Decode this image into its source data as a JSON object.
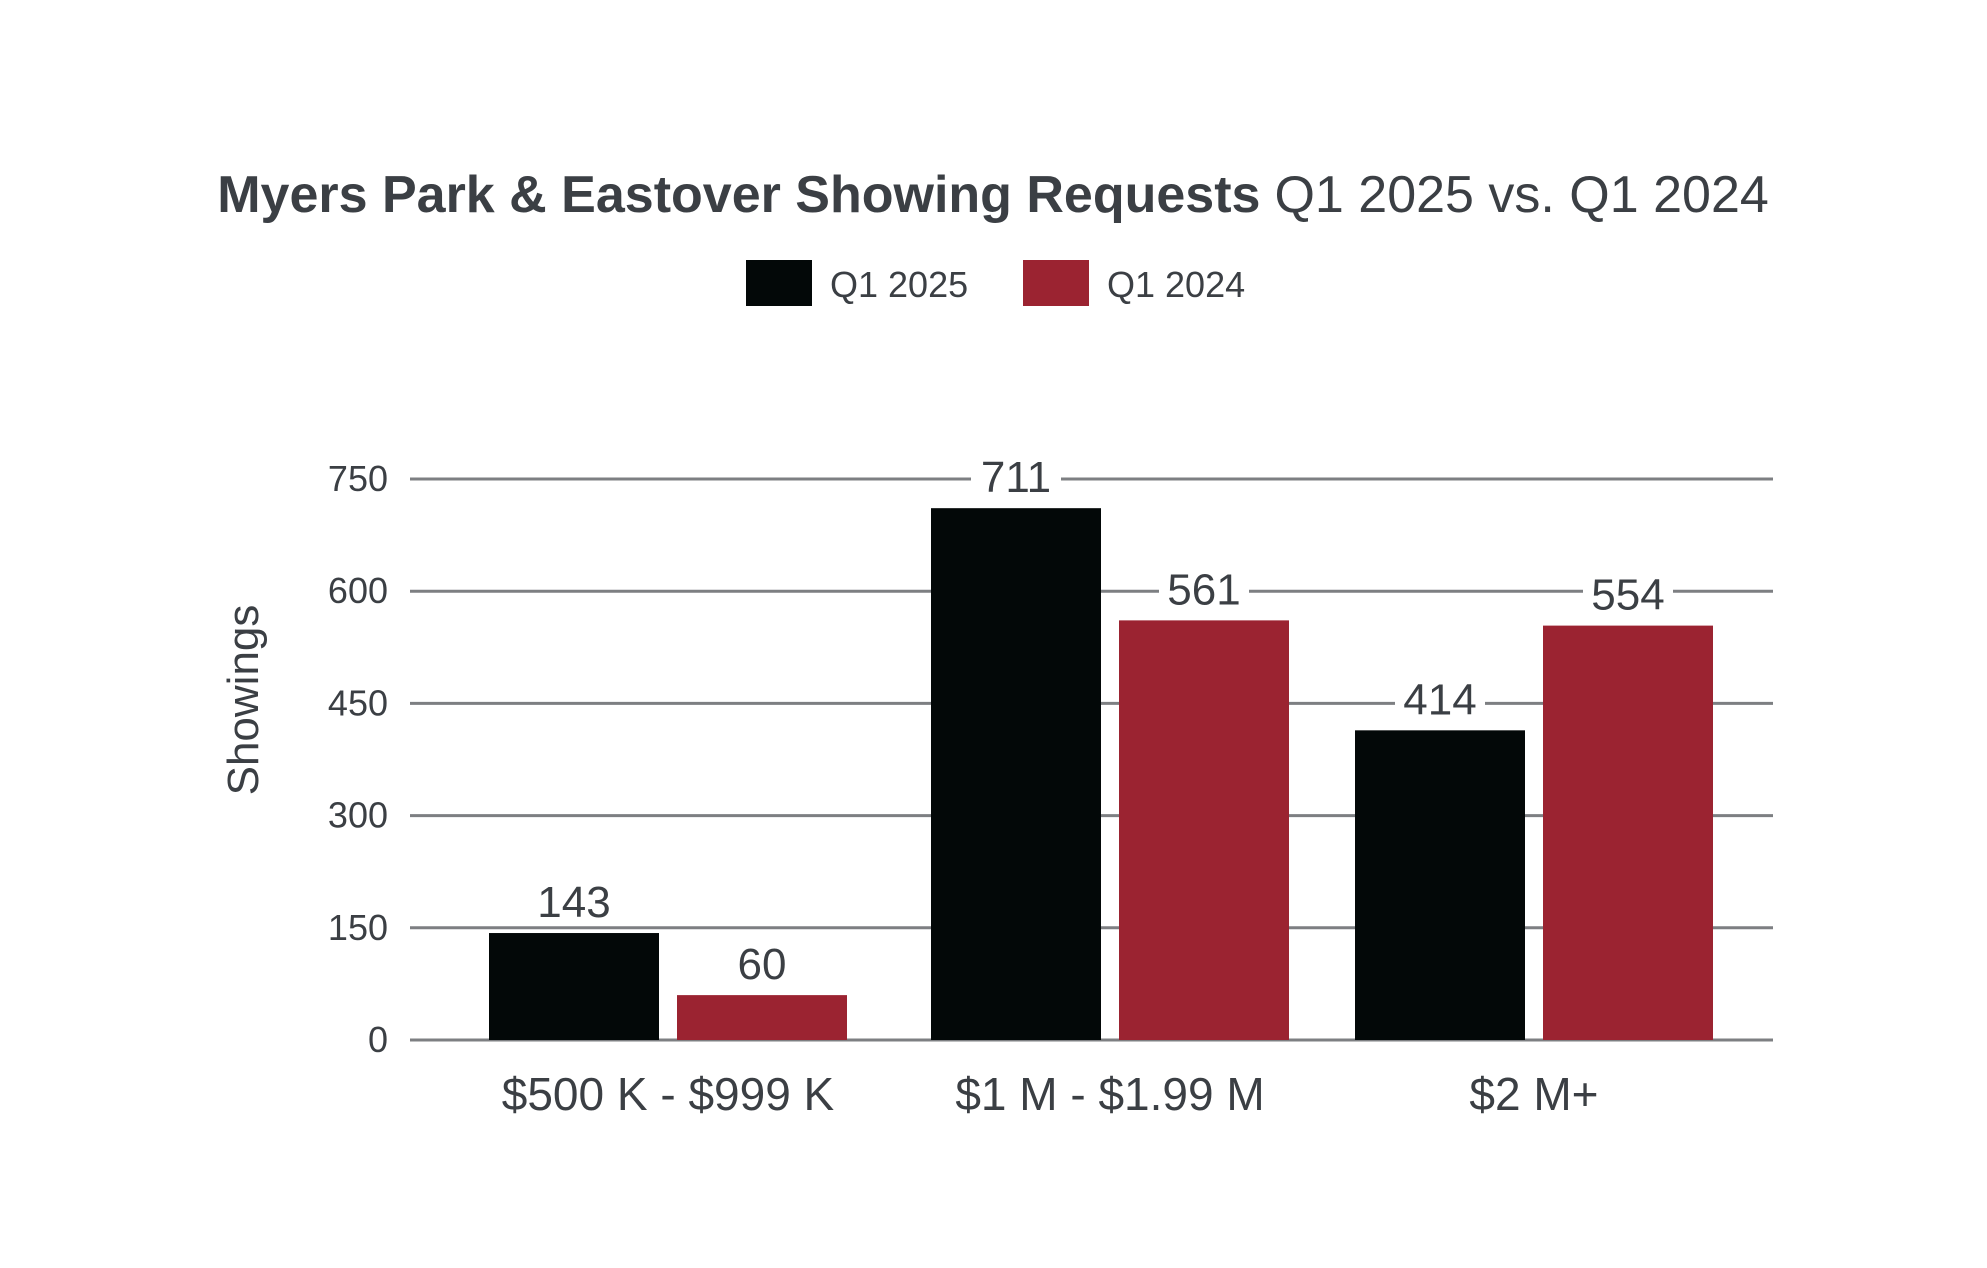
{
  "chart_data": {
    "type": "bar",
    "title": "Myers Park & Eastover Showing Requests",
    "subtitle": "Q1 2025 vs. Q1 2024",
    "xlabel": "",
    "ylabel": "Showings",
    "ylim": [
      0,
      750
    ],
    "yticks": [
      "0",
      "150",
      "300",
      "450",
      "600",
      "750"
    ],
    "grid": true,
    "legend_position": "top-center",
    "categories": [
      "$500 K - $999 K",
      "$1 M - $1.99 M",
      "$2 M+"
    ],
    "series": [
      {
        "name": "Q1 2025",
        "color": "#030808",
        "values": [
          143,
          711,
          414
        ],
        "labels": [
          "143",
          "711",
          "414"
        ]
      },
      {
        "name": "Q1 2024",
        "color": "#9b2331",
        "values": [
          60,
          561,
          554
        ],
        "labels": [
          "60",
          "561",
          "554"
        ]
      }
    ]
  },
  "colors": {
    "text": "#3b3f44",
    "grid": "#7d7f82",
    "background": "#ffffff"
  }
}
